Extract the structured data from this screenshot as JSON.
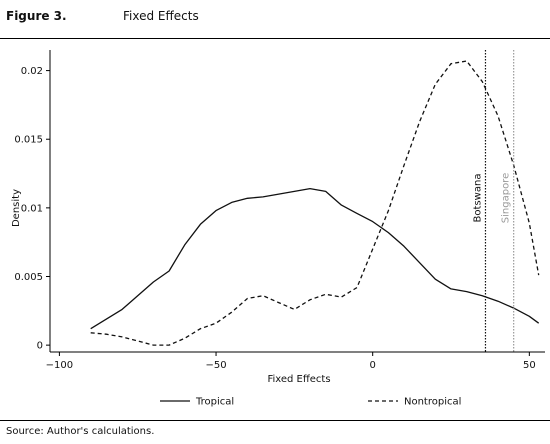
{
  "figure": {
    "label": "Figure 3.",
    "title": "Fixed Effects",
    "source": "Source: Author's calculations."
  },
  "colors": {
    "series": "#111111",
    "botswana": "#111111",
    "singapore": "#9a9a9a"
  },
  "chart_data": {
    "type": "line",
    "title": "Fixed Effects",
    "xlabel": "Fixed Effects",
    "ylabel": "Density",
    "xlim": [
      -103,
      55
    ],
    "ylim": [
      -0.0005,
      0.0215
    ],
    "xticks": [
      -100,
      -50,
      0,
      50
    ],
    "xtick_labels": [
      "−100",
      "−50",
      "0",
      "50"
    ],
    "yticks": [
      0,
      0.005,
      0.01,
      0.015,
      0.02
    ],
    "ytick_labels": [
      "0",
      "0.005",
      "0.01",
      "0.015",
      "0.02"
    ],
    "grid": false,
    "legend_position": "bottom",
    "series": [
      {
        "name": "Tropical",
        "style": "solid",
        "points": [
          [
            -90,
            0.0012
          ],
          [
            -85,
            0.0019
          ],
          [
            -80,
            0.0026
          ],
          [
            -75,
            0.0036
          ],
          [
            -70,
            0.0046
          ],
          [
            -65,
            0.0054
          ],
          [
            -60,
            0.0073
          ],
          [
            -55,
            0.0088
          ],
          [
            -50,
            0.0098
          ],
          [
            -45,
            0.0104
          ],
          [
            -40,
            0.0107
          ],
          [
            -35,
            0.0108
          ],
          [
            -30,
            0.011
          ],
          [
            -25,
            0.0112
          ],
          [
            -20,
            0.0114
          ],
          [
            -15,
            0.0112
          ],
          [
            -10,
            0.0102
          ],
          [
            -5,
            0.0096
          ],
          [
            0,
            0.009
          ],
          [
            5,
            0.0082
          ],
          [
            10,
            0.0072
          ],
          [
            15,
            0.006
          ],
          [
            20,
            0.0048
          ],
          [
            25,
            0.0041
          ],
          [
            30,
            0.0039
          ],
          [
            35,
            0.0036
          ],
          [
            40,
            0.0032
          ],
          [
            45,
            0.0027
          ],
          [
            50,
            0.0021
          ],
          [
            53,
            0.0016
          ]
        ]
      },
      {
        "name": "Nontropical",
        "style": "dashed",
        "points": [
          [
            -90,
            0.0009
          ],
          [
            -85,
            0.0008
          ],
          [
            -80,
            0.0006
          ],
          [
            -75,
            0.0003
          ],
          [
            -70,
            0.0
          ],
          [
            -65,
            0.0
          ],
          [
            -60,
            0.0005
          ],
          [
            -55,
            0.0012
          ],
          [
            -50,
            0.0016
          ],
          [
            -45,
            0.0024
          ],
          [
            -40,
            0.0034
          ],
          [
            -35,
            0.0036
          ],
          [
            -30,
            0.0031
          ],
          [
            -25,
            0.0026
          ],
          [
            -20,
            0.0033
          ],
          [
            -15,
            0.0037
          ],
          [
            -10,
            0.0035
          ],
          [
            -5,
            0.0042
          ],
          [
            0,
            0.007
          ],
          [
            5,
            0.0098
          ],
          [
            10,
            0.0131
          ],
          [
            15,
            0.0163
          ],
          [
            20,
            0.019
          ],
          [
            25,
            0.0205
          ],
          [
            30,
            0.0207
          ],
          [
            35,
            0.0192
          ],
          [
            40,
            0.0167
          ],
          [
            45,
            0.0131
          ],
          [
            50,
            0.0089
          ],
          [
            53,
            0.0051
          ]
        ]
      }
    ],
    "reference_lines": [
      {
        "label": "Botswana",
        "x": 36,
        "style": "dotted",
        "color": "#111111"
      },
      {
        "label": "Singapore",
        "x": 45,
        "style": "dotted",
        "color": "#9a9a9a"
      }
    ],
    "legend": [
      {
        "label": "Tropical",
        "style": "solid"
      },
      {
        "label": "Nontropical",
        "style": "dashed"
      }
    ]
  }
}
